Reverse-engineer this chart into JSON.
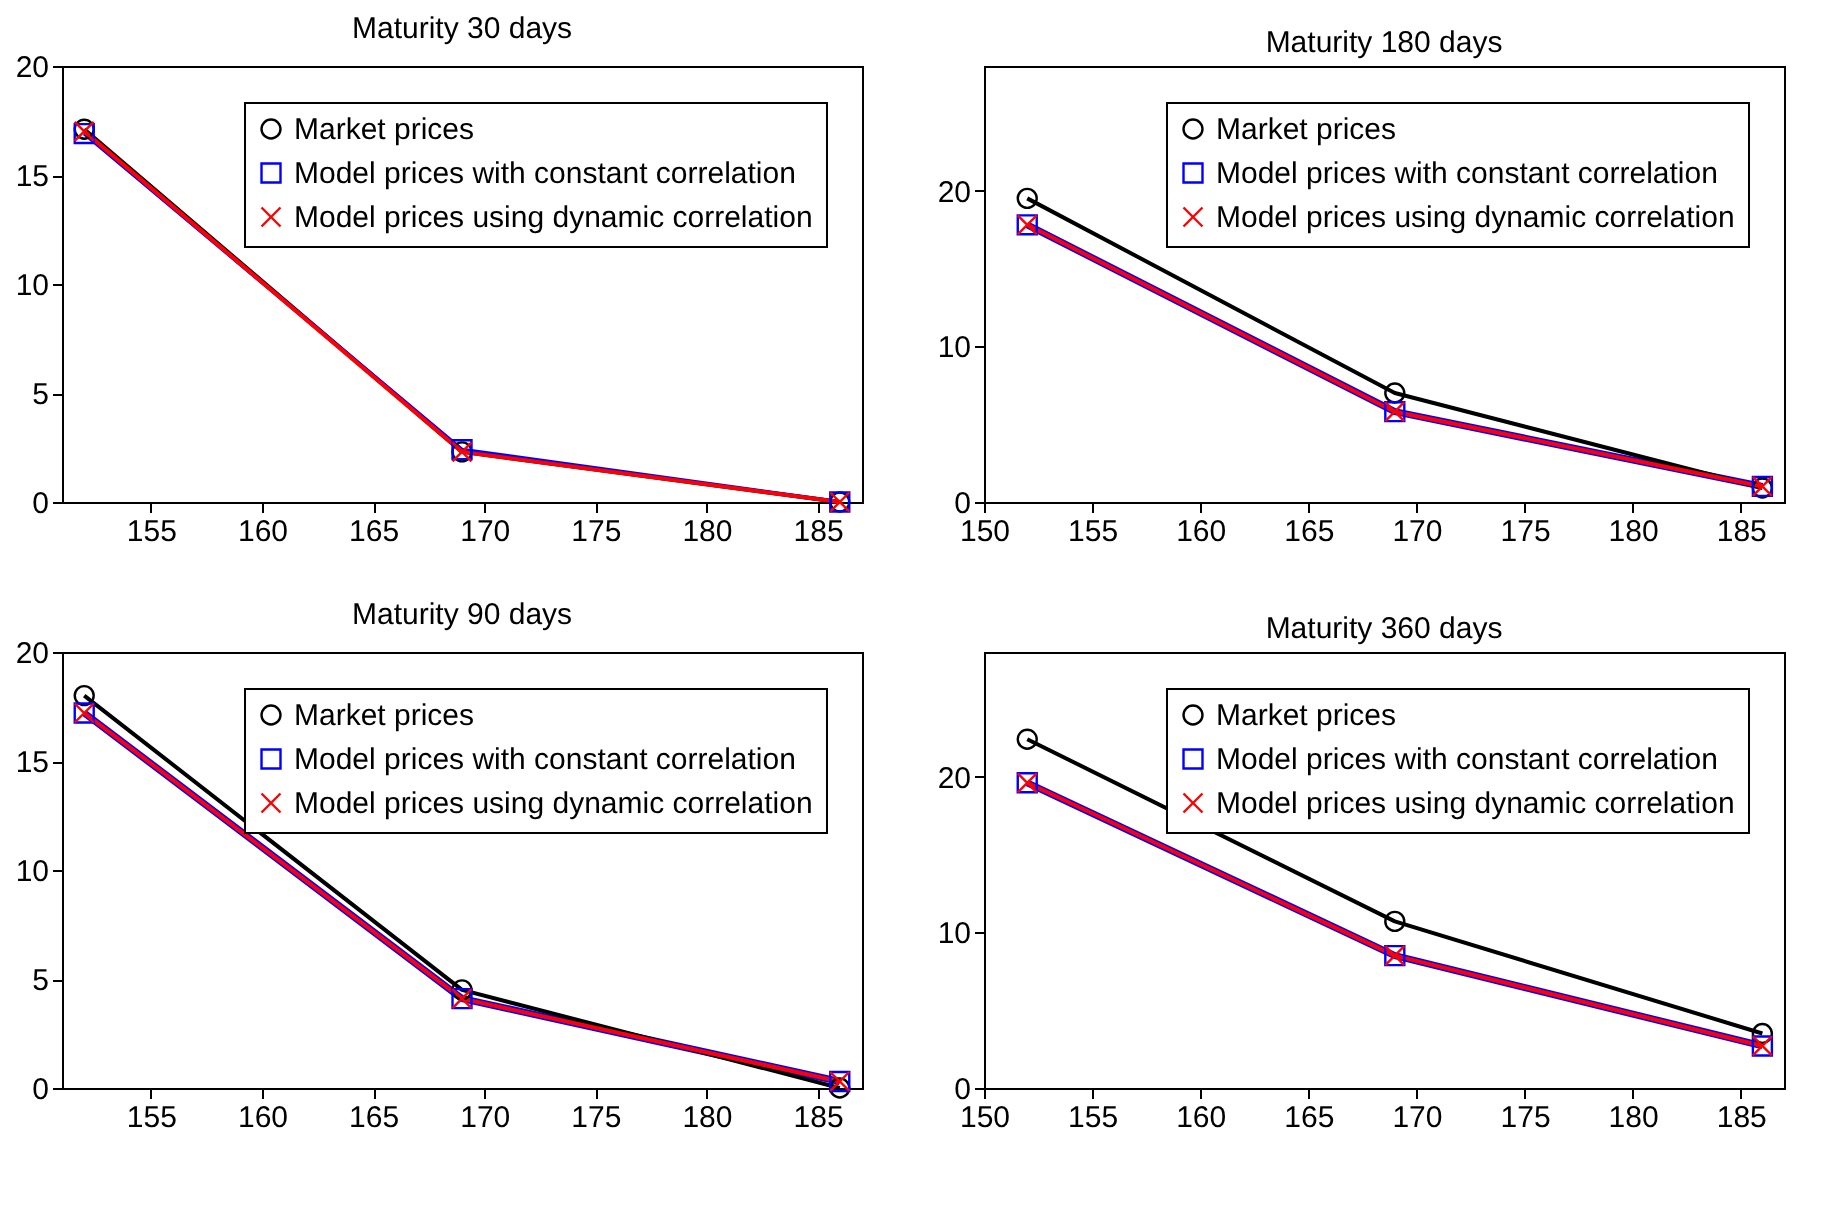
{
  "chart_data": [
    {
      "type": "line",
      "title": "Maturity 30 days",
      "x": [
        152,
        169,
        186
      ],
      "xlim": [
        151,
        187
      ],
      "xticks": [
        155,
        160,
        165,
        170,
        175,
        180,
        185
      ],
      "ylim": [
        0,
        20
      ],
      "yticks": [
        0,
        5,
        10,
        15,
        20
      ],
      "legend": "top right",
      "grid": false,
      "series": [
        {
          "name": "Market prices",
          "color": "#000000",
          "marker": "circle",
          "values": [
            17.1,
            2.3,
            0
          ]
        },
        {
          "name": "Model prices with constant correlation",
          "color": "#0000ff",
          "marker": "square",
          "values": [
            16.9,
            2.4,
            0
          ]
        },
        {
          "name": "Model prices using dynamic correlation",
          "color": "#ff0000",
          "marker": "cross",
          "values": [
            17.0,
            2.3,
            0
          ]
        }
      ]
    },
    {
      "type": "line",
      "title": "Maturity 180 days",
      "x": [
        152,
        169,
        186
      ],
      "xlim": [
        150,
        187
      ],
      "xticks": [
        150,
        155,
        160,
        165,
        170,
        175,
        180,
        185
      ],
      "ylim": [
        0,
        28
      ],
      "yticks": [
        0,
        10,
        20
      ],
      "legend": "top right",
      "grid": false,
      "series": [
        {
          "name": "Market prices",
          "color": "#000000",
          "marker": "circle",
          "values": [
            19.5,
            7.0,
            0.9
          ]
        },
        {
          "name": "Model prices with constant correlation",
          "color": "#0000ff",
          "marker": "square",
          "values": [
            17.8,
            5.8,
            1.0
          ]
        },
        {
          "name": "Model prices using dynamic correlation",
          "color": "#ff0000",
          "marker": "cross",
          "values": [
            17.8,
            5.8,
            1.0
          ]
        }
      ]
    },
    {
      "type": "line",
      "title": "Maturity 90 days",
      "x": [
        152,
        169,
        186
      ],
      "xlim": [
        151,
        187
      ],
      "xticks": [
        155,
        160,
        165,
        170,
        175,
        180,
        185
      ],
      "ylim": [
        0,
        20
      ],
      "yticks": [
        0,
        5,
        10,
        15,
        20
      ],
      "legend": "top right",
      "grid": false,
      "series": [
        {
          "name": "Market prices",
          "color": "#000000",
          "marker": "circle",
          "values": [
            18.0,
            4.5,
            0
          ]
        },
        {
          "name": "Model prices with constant correlation",
          "color": "#0000ff",
          "marker": "square",
          "values": [
            17.2,
            4.1,
            0.3
          ]
        },
        {
          "name": "Model prices using dynamic correlation",
          "color": "#ff0000",
          "marker": "cross",
          "values": [
            17.2,
            4.1,
            0.3
          ]
        }
      ]
    },
    {
      "type": "line",
      "title": "Maturity 360 days",
      "x": [
        152,
        169,
        186
      ],
      "xlim": [
        150,
        187
      ],
      "xticks": [
        150,
        155,
        160,
        165,
        170,
        175,
        180,
        185
      ],
      "ylim": [
        0,
        28
      ],
      "yticks": [
        0,
        10,
        20
      ],
      "legend": "top right",
      "grid": false,
      "series": [
        {
          "name": "Market prices",
          "color": "#000000",
          "marker": "circle",
          "values": [
            22.4,
            10.7,
            3.5
          ]
        },
        {
          "name": "Model prices with constant correlation",
          "color": "#0000ff",
          "marker": "square",
          "values": [
            19.6,
            8.5,
            2.7
          ]
        },
        {
          "name": "Model prices using dynamic correlation",
          "color": "#ff0000",
          "marker": "cross",
          "values": [
            19.6,
            8.5,
            2.7
          ]
        }
      ]
    }
  ]
}
